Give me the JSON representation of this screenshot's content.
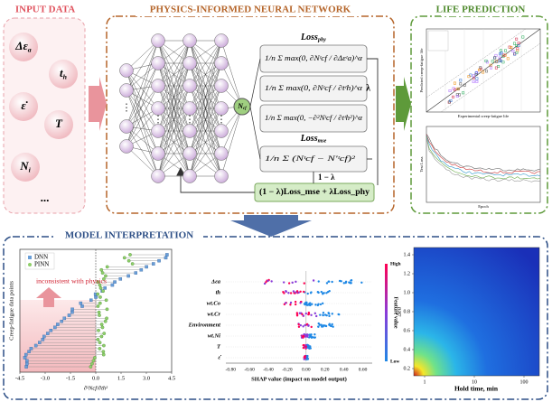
{
  "input_data": {
    "title": "INPUT DATA",
    "features": [
      {
        "text": "Δε",
        "sub": "a"
      },
      {
        "text": "t",
        "sub": "h"
      },
      {
        "text": "ε̇",
        "sub": ""
      },
      {
        "text": "T",
        "sub": ""
      },
      {
        "text": "N",
        "sub": "i"
      },
      {
        "text": "...",
        "sub": ""
      }
    ]
  },
  "pinn": {
    "title": "PHYSICS-INFORMED NEURAL NETWORK",
    "output_node": {
      "text": "N",
      "sub": "cf"
    },
    "loss_phy": {
      "text": "Loss",
      "sub": "phy"
    },
    "phy_terms": [
      "1/n Σ max(0, ∂Nᵗcf / ∂Δεᵗa)^α",
      "1/n Σ max(0, ∂Nᵗcf / ∂tᵗh)^α",
      "1/n Σ max(0, −∂²Nᵗcf / ∂tᵗh²)^α"
    ],
    "loss_mse": {
      "text": "Loss",
      "sub": "mse"
    },
    "mse_term": "1/n Σ (Nᵗcf − N'ᵗcf)²",
    "lambda": "λ",
    "one_minus_lambda": "1 − λ",
    "total_loss": "(1 − λ)Loss_mse + λLoss_phy"
  },
  "life_prediction": {
    "title": "LIFE PREDICTION",
    "scatter": {
      "x_label": "Experimental creep-fatigue life",
      "y_label": "Predicted creep-fatigue life"
    },
    "loss": {
      "x_label": "Epoch",
      "y_label": "Test Loss"
    }
  },
  "model_interpretation": {
    "title": "MODEL INTERPRETATION",
    "derivative_plot": {
      "legend": [
        "DNN",
        "PINN"
      ],
      "annotation": "inconsistent with physics",
      "y_label": "Creep-fatigue data points",
      "x_label": "∂²Ncf/∂th²",
      "xticks": [
        "-4.5",
        "-3.0",
        "-1.5",
        "0.0",
        "1.5",
        "3.0",
        "4.5"
      ]
    },
    "shap": {
      "features": [
        "Δεa",
        "th",
        "wt.Co",
        "wt.Cr",
        "Environment",
        "wt.Ni",
        "T",
        "ε̇"
      ],
      "xticks": [
        "-0.80",
        "-0.60",
        "-0.40",
        "-0.20",
        "0.00",
        "0.20",
        "0.40",
        "0.60"
      ],
      "x_label": "SHAP value (impact on model output)",
      "colorbar": {
        "high": "High",
        "low": "Low",
        "label": "Feature value"
      }
    },
    "heatmap": {
      "yticks": [
        "0.2",
        "0.4",
        "0.6",
        "0.8",
        "1.0",
        "1.2",
        "1.4"
      ],
      "xticks": [
        "1",
        "10",
        "100"
      ],
      "x_label": "Hold time, min",
      "y_label": "Δεa"
    }
  }
}
